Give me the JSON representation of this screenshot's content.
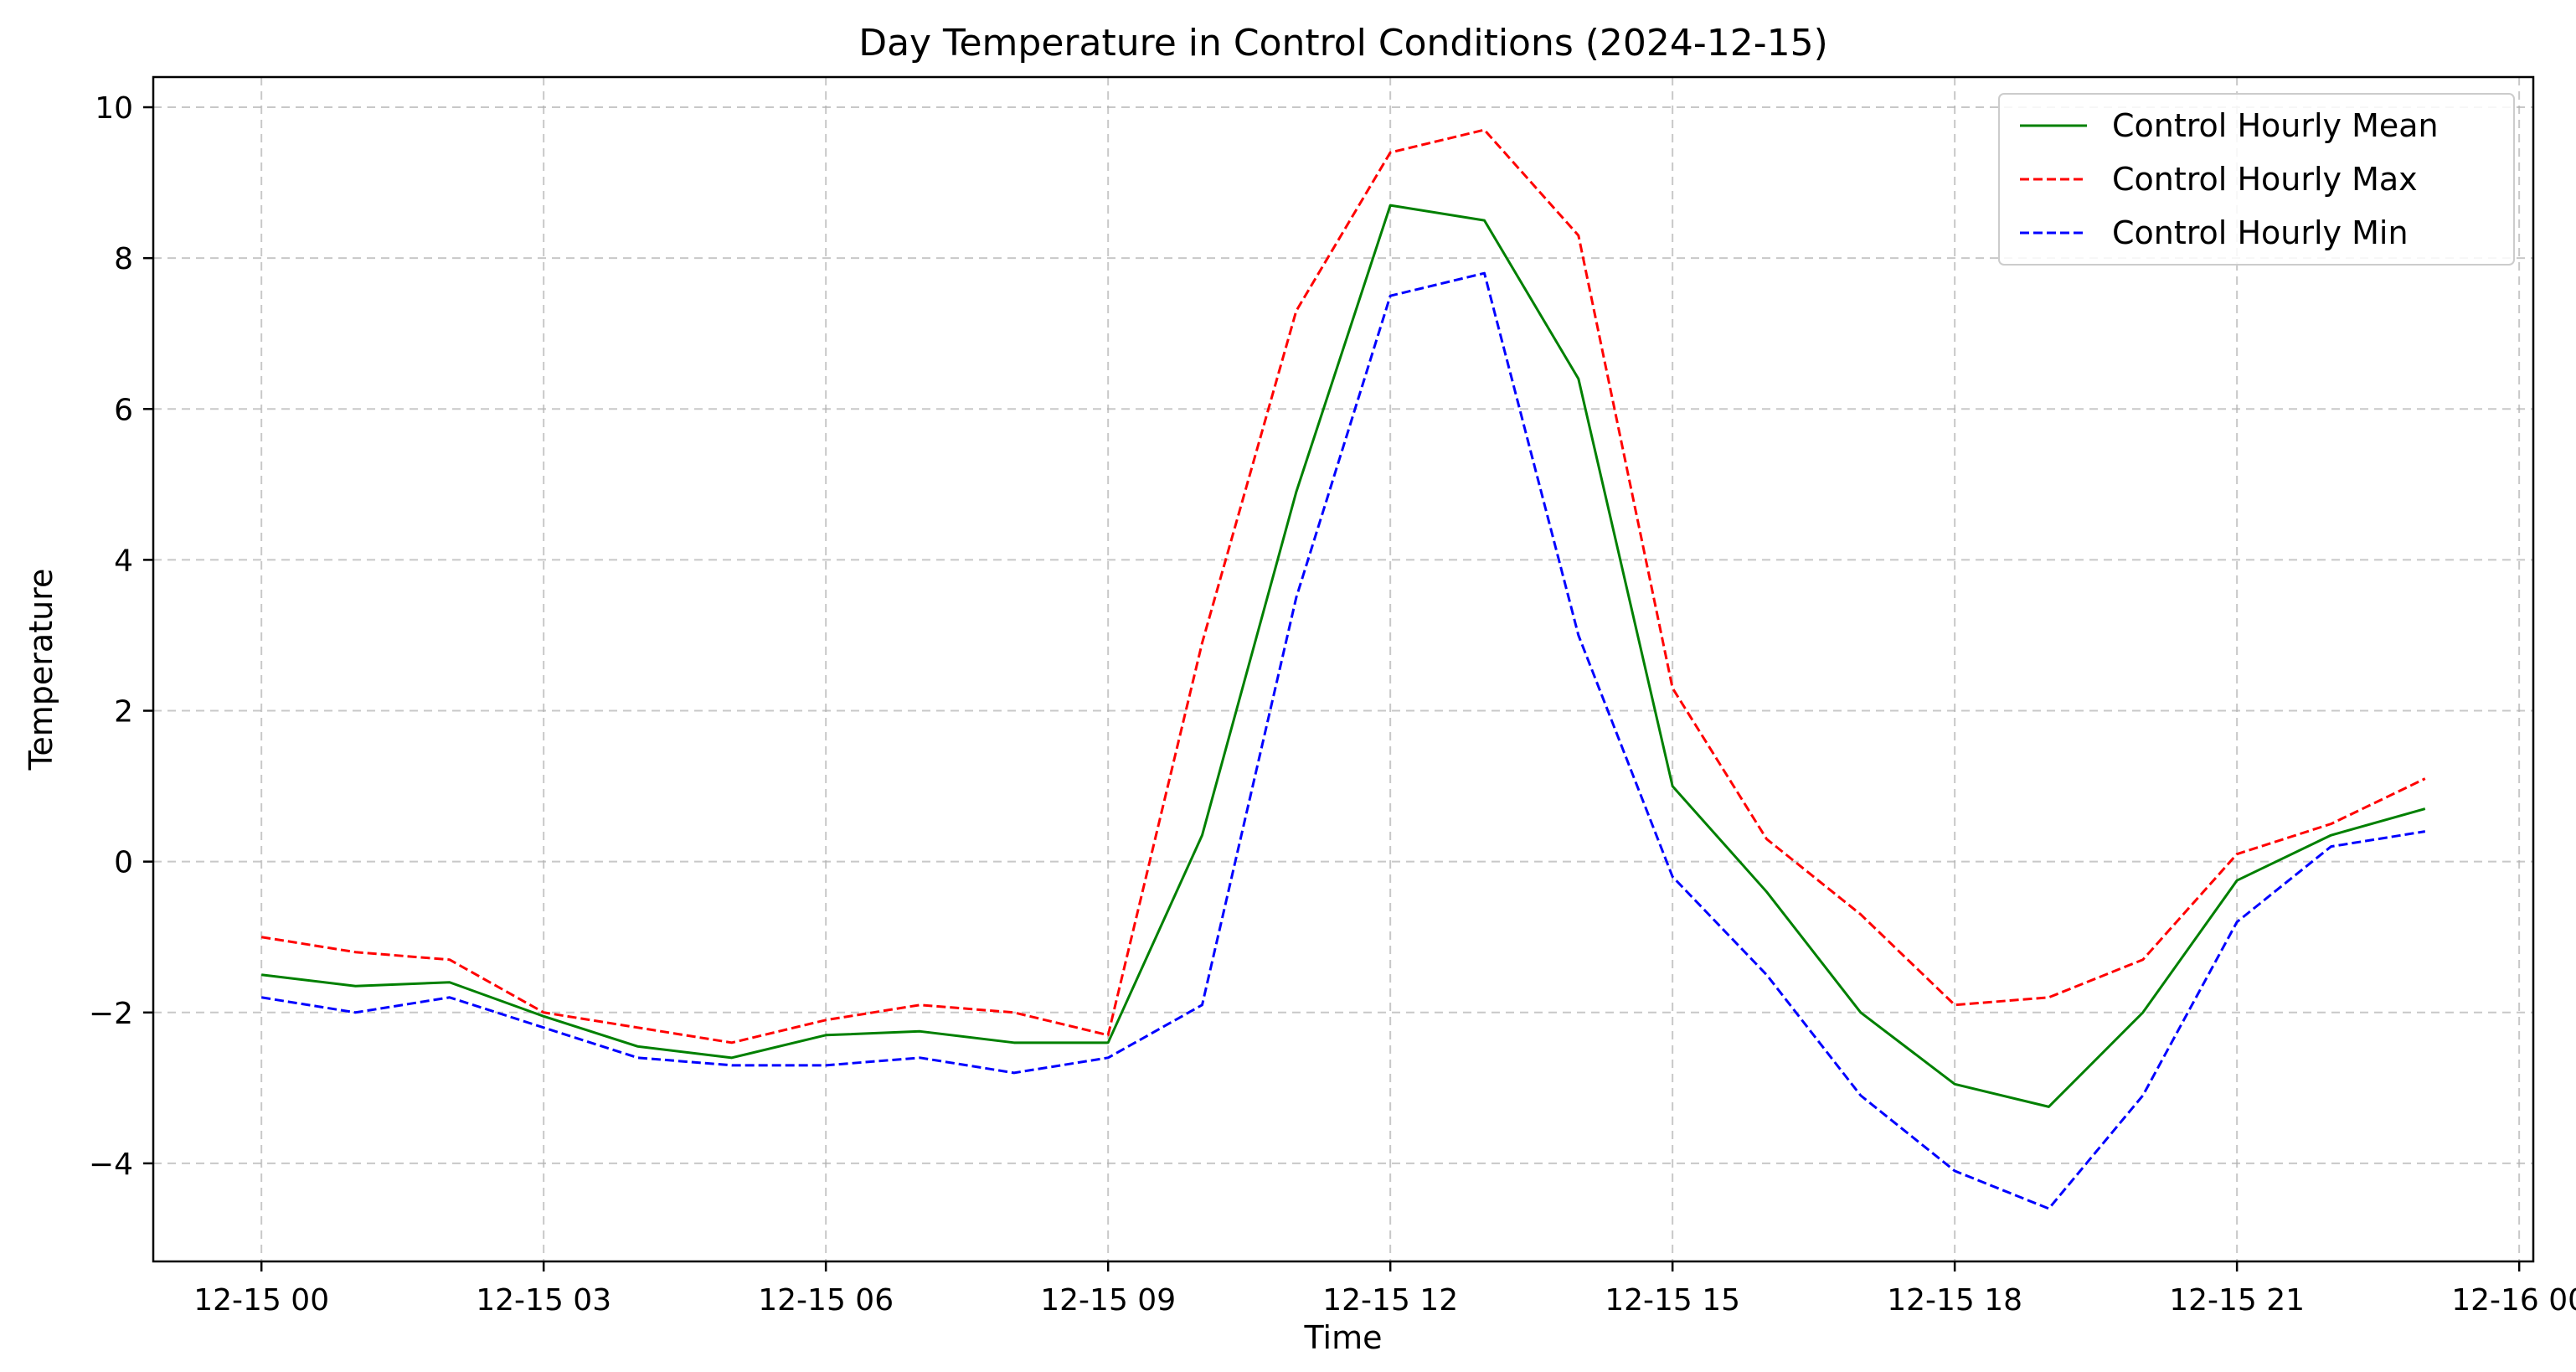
{
  "chart_data": {
    "type": "line",
    "title": "Day Temperature in Control Conditions (2024-12-15)",
    "xlabel": "Time",
    "ylabel": "Temperature",
    "x_tick_labels": [
      "12-15 00",
      "12-15 03",
      "12-15 06",
      "12-15 09",
      "12-15 12",
      "12-15 15",
      "12-15 18",
      "12-15 21",
      "12-16 00"
    ],
    "y_ticks": [
      -4,
      -2,
      0,
      2,
      4,
      6,
      8,
      10
    ],
    "ylim": [
      -5.3,
      10.4
    ],
    "xlim_hours": [
      -1.15,
      24.15
    ],
    "grid": true,
    "legend_position": "top-right",
    "x_hours": [
      0,
      1,
      2,
      3,
      4,
      5,
      6,
      7,
      8,
      9,
      10,
      11,
      12,
      13,
      14,
      15,
      16,
      17,
      18,
      19,
      20,
      21,
      22,
      23
    ],
    "series": [
      {
        "name": "Control Hourly Mean",
        "color": "#008000",
        "style": "solid",
        "values": [
          -1.5,
          -1.65,
          -1.6,
          -2.05,
          -2.45,
          -2.6,
          -2.3,
          -2.25,
          -2.4,
          -2.4,
          0.35,
          4.9,
          8.7,
          8.5,
          6.4,
          1.0,
          -0.4,
          -2.0,
          -2.95,
          -3.25,
          -2.0,
          -0.25,
          0.35,
          0.7
        ]
      },
      {
        "name": "Control Hourly Max",
        "color": "#ff0000",
        "style": "dashed",
        "values": [
          -1.0,
          -1.2,
          -1.3,
          -2.0,
          -2.2,
          -2.4,
          -2.1,
          -1.9,
          -2.0,
          -2.3,
          2.9,
          7.3,
          9.4,
          9.7,
          8.3,
          2.3,
          0.3,
          -0.7,
          -1.9,
          -1.8,
          -1.3,
          0.1,
          0.5,
          1.1
        ]
      },
      {
        "name": "Control Hourly Min",
        "color": "#0000ff",
        "style": "dashed",
        "values": [
          -1.8,
          -2.0,
          -1.8,
          -2.2,
          -2.6,
          -2.7,
          -2.7,
          -2.6,
          -2.8,
          -2.6,
          -1.9,
          3.5,
          7.5,
          7.8,
          3.0,
          -0.2,
          -1.5,
          -3.1,
          -4.1,
          -4.6,
          -3.1,
          -0.8,
          0.2,
          0.4
        ]
      }
    ]
  }
}
